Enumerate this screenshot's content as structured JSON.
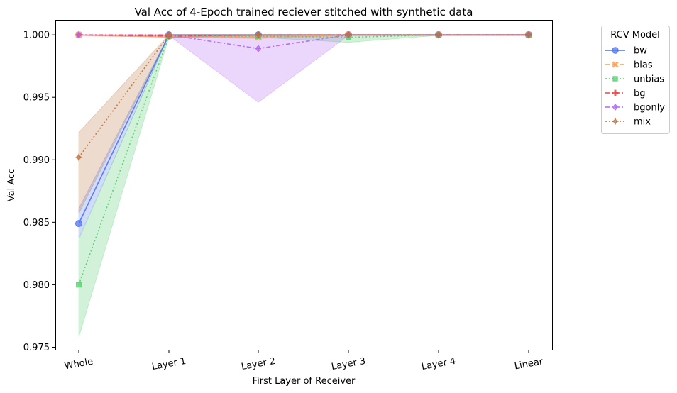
{
  "chart_data": {
    "type": "line",
    "title": "Val Acc of 4-Epoch trained reciever stitched with synthetic data",
    "xlabel": "First Layer of Receiver",
    "ylabel": "Val Acc",
    "categories": [
      "Whole",
      "Layer 1",
      "Layer 2",
      "Layer 3",
      "Layer 4",
      "Linear"
    ],
    "ylim": [
      0.9748,
      1.0012
    ],
    "yticks": [
      "0.975",
      "0.980",
      "0.985",
      "0.990",
      "0.995",
      "1.000"
    ],
    "ytick_values": [
      0.975,
      0.98,
      0.985,
      0.99,
      0.995,
      1.0
    ],
    "legend": {
      "title": "RCV Model",
      "placement": "upper right, outside plot"
    },
    "grid": false,
    "series": [
      {
        "name": "bw",
        "color": "#4c72f0",
        "dash": "",
        "marker": "circle",
        "values": [
          0.9849,
          1.0,
          1.0,
          1.0,
          1.0,
          1.0
        ],
        "ci_low": [
          0.9837,
          0.99995,
          0.99995,
          0.99995,
          0.99995,
          0.99995
        ],
        "ci_high": [
          0.9861,
          1.0,
          1.0,
          1.0,
          1.0,
          1.0
        ]
      },
      {
        "name": "bias",
        "color": "#ff9f4a",
        "dash": "7,3",
        "marker": "x",
        "values": [
          1.0,
          0.9999,
          0.9998,
          1.0,
          1.0,
          1.0
        ],
        "ci_low": [
          0.99995,
          0.9998,
          0.9997,
          0.99995,
          0.99995,
          0.99995
        ],
        "ci_high": [
          1.0,
          1.0,
          0.9999,
          1.0,
          1.0,
          1.0
        ]
      },
      {
        "name": "unbias",
        "color": "#4fce6a",
        "dash": "2,3",
        "marker": "square",
        "values": [
          0.98,
          0.9999,
          0.9999,
          0.9998,
          1.0,
          1.0
        ],
        "ci_low": [
          0.9758,
          0.9998,
          0.9998,
          0.9994,
          0.99995,
          0.99995
        ],
        "ci_high": [
          0.9836,
          1.0,
          1.0,
          1.0,
          1.0,
          1.0
        ]
      },
      {
        "name": "bg",
        "color": "#e8474a",
        "dash": "6,3,2,3",
        "marker": "plus",
        "values": [
          1.0,
          0.9999,
          1.0,
          1.0,
          1.0,
          1.0
        ],
        "ci_low": [
          0.99995,
          0.9998,
          0.99995,
          0.99995,
          0.99995,
          0.99995
        ],
        "ci_high": [
          1.0,
          1.0,
          1.0,
          1.0,
          1.0,
          1.0
        ]
      },
      {
        "name": "bgonly",
        "color": "#b366f0",
        "dash": "6,3,2,3",
        "marker": "diamond",
        "values": [
          1.0,
          1.0,
          0.9989,
          1.0,
          1.0,
          1.0
        ],
        "ci_low": [
          0.99995,
          0.99995,
          0.9946,
          0.99995,
          0.99995,
          0.99995
        ],
        "ci_high": [
          1.0,
          1.0,
          1.0,
          1.0,
          1.0,
          1.0
        ]
      },
      {
        "name": "mix",
        "color": "#b8723e",
        "dash": "2,3",
        "marker": "star",
        "values": [
          0.9902,
          1.0,
          1.0,
          1.0,
          1.0,
          1.0
        ],
        "ci_low": [
          0.9857,
          0.99995,
          0.99995,
          0.99995,
          0.99995,
          0.99995
        ],
        "ci_high": [
          0.9922,
          1.0,
          1.0,
          1.0,
          1.0,
          1.0
        ]
      }
    ]
  }
}
